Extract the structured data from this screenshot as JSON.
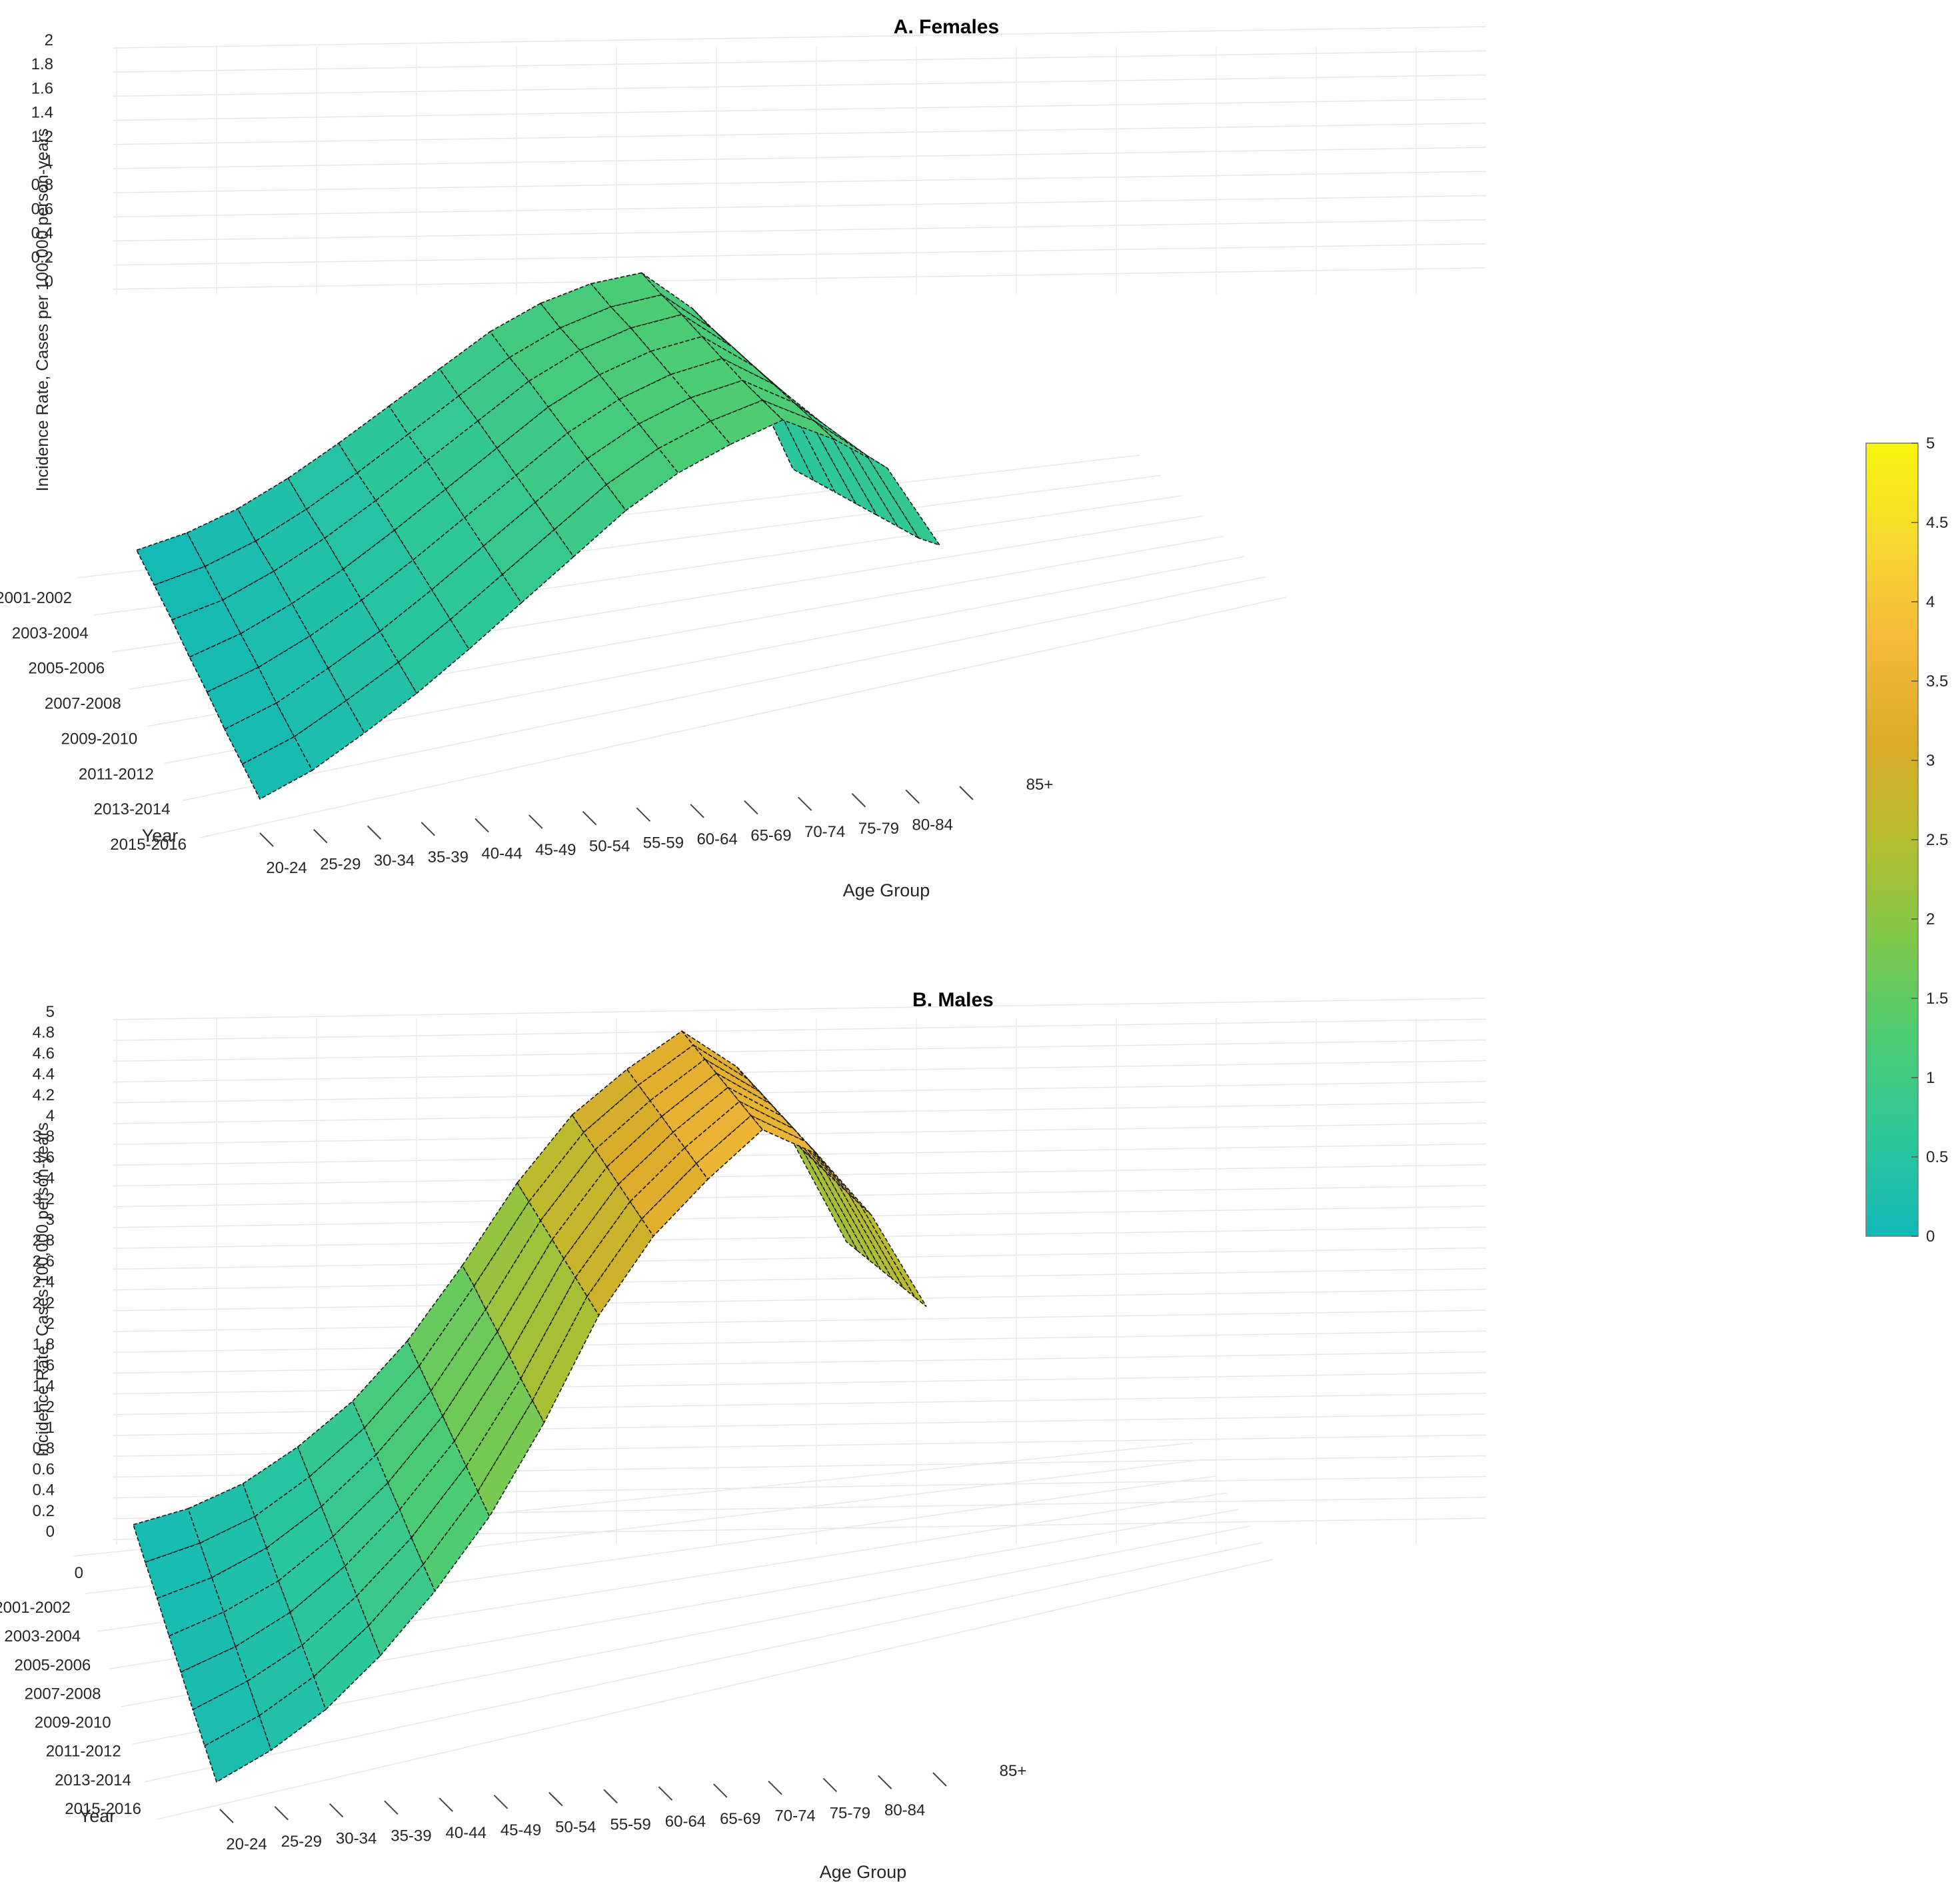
{
  "chart_data": [
    {
      "type": "surface",
      "title": "A. Females",
      "xlabel": "Age Group",
      "ylabel": "Year",
      "zlabel": "Incidence Rate, Cases per 100,000 person-years",
      "zlim": [
        0,
        2
      ],
      "zticks": [
        "0",
        "0.2",
        "0.4",
        "0.6",
        "0.8",
        "1",
        "1.2",
        "1.4",
        "1.6",
        "1.8",
        "2"
      ],
      "age_groups": [
        "20-24",
        "25-29",
        "30-34",
        "35-39",
        "40-44",
        "45-49",
        "50-54",
        "55-59",
        "60-64",
        "65-69",
        "70-74",
        "75-79",
        "80-84",
        "85+"
      ],
      "years": [
        "2001-2002",
        "2003-2004",
        "2005-2006",
        "2007-2008",
        "2009-2010",
        "2011-2012",
        "2013-2014",
        "2015-2016"
      ],
      "z": [
        [
          0.05,
          0.12,
          0.22,
          0.35,
          0.5,
          0.66,
          0.82,
          0.98,
          1.1,
          1.18,
          1.22,
          1.05,
          0.8,
          0.3
        ],
        [
          0.06,
          0.13,
          0.23,
          0.36,
          0.51,
          0.67,
          0.83,
          0.99,
          1.11,
          1.19,
          1.23,
          1.06,
          0.82,
          0.34
        ],
        [
          0.07,
          0.14,
          0.25,
          0.38,
          0.53,
          0.69,
          0.85,
          1.01,
          1.13,
          1.21,
          1.25,
          1.08,
          0.85,
          0.38
        ],
        [
          0.07,
          0.15,
          0.26,
          0.39,
          0.54,
          0.7,
          0.86,
          1.02,
          1.14,
          1.22,
          1.26,
          1.1,
          0.87,
          0.42
        ],
        [
          0.08,
          0.16,
          0.27,
          0.4,
          0.55,
          0.71,
          0.87,
          1.03,
          1.15,
          1.23,
          1.27,
          1.12,
          0.9,
          0.46
        ],
        [
          0.08,
          0.16,
          0.28,
          0.41,
          0.56,
          0.72,
          0.88,
          1.04,
          1.16,
          1.24,
          1.28,
          1.14,
          0.93,
          0.5
        ],
        [
          0.09,
          0.17,
          0.29,
          0.42,
          0.57,
          0.73,
          0.89,
          1.05,
          1.17,
          1.25,
          1.3,
          1.16,
          0.96,
          0.54
        ],
        [
          0.1,
          0.18,
          0.3,
          0.43,
          0.58,
          0.74,
          0.9,
          1.06,
          1.18,
          1.26,
          1.32,
          1.18,
          1.0,
          0.6
        ]
      ]
    },
    {
      "type": "surface",
      "title": "B. Males",
      "xlabel": "Age Group",
      "ylabel": "Year",
      "zlabel": "Incidence Rate, Cases 100,000 person-years",
      "zlim": [
        0,
        5
      ],
      "zticks": [
        "0",
        "0.2",
        "0.4",
        "0.6",
        "0.8",
        "1",
        "1.2",
        "1.4",
        "1.6",
        "1.8",
        "2",
        "2.2",
        "2.4",
        "2.6",
        "2.8",
        "3",
        "3.2",
        "3.4",
        "3.6",
        "3.8",
        "4",
        "4.2",
        "4.4",
        "4.6",
        "4.8",
        "5"
      ],
      "extra_tick": "0",
      "age_groups": [
        "20-24",
        "25-29",
        "30-34",
        "35-39",
        "40-44",
        "45-49",
        "50-54",
        "55-59",
        "60-64",
        "65-69",
        "70-74",
        "75-79",
        "80-84",
        "85+"
      ],
      "years": [
        "2001-2002",
        "2003-2004",
        "2005-2006",
        "2007-2008",
        "2009-2010",
        "2011-2012",
        "2013-2014",
        "2015-2016"
      ],
      "z": [
        [
          0.1,
          0.2,
          0.36,
          0.6,
          0.9,
          1.3,
          1.8,
          2.35,
          2.8,
          3.1,
          3.35,
          3.1,
          2.6,
          1.9
        ],
        [
          0.1,
          0.21,
          0.37,
          0.62,
          0.93,
          1.33,
          1.85,
          2.4,
          2.85,
          3.15,
          3.4,
          3.15,
          2.65,
          1.95
        ],
        [
          0.11,
          0.22,
          0.39,
          0.64,
          0.96,
          1.36,
          1.88,
          2.45,
          2.9,
          3.2,
          3.45,
          3.2,
          2.7,
          2.0
        ],
        [
          0.11,
          0.23,
          0.4,
          0.66,
          0.98,
          1.39,
          1.92,
          2.5,
          2.95,
          3.25,
          3.5,
          3.25,
          2.75,
          2.05
        ],
        [
          0.12,
          0.24,
          0.42,
          0.68,
          1.01,
          1.42,
          1.95,
          2.55,
          3.0,
          3.3,
          3.55,
          3.3,
          2.8,
          2.1
        ],
        [
          0.12,
          0.25,
          0.43,
          0.7,
          1.03,
          1.45,
          1.98,
          2.6,
          3.05,
          3.35,
          3.6,
          3.35,
          2.85,
          2.15
        ],
        [
          0.13,
          0.26,
          0.45,
          0.72,
          1.06,
          1.48,
          2.02,
          2.65,
          3.1,
          3.4,
          3.65,
          3.4,
          2.9,
          2.2
        ],
        [
          0.14,
          0.27,
          0.46,
          0.74,
          1.09,
          1.51,
          2.06,
          2.7,
          3.15,
          3.45,
          3.7,
          3.45,
          2.95,
          2.25
        ]
      ]
    }
  ],
  "colorbar": {
    "ticks": [
      "0",
      "0.5",
      "1",
      "1.5",
      "2",
      "2.5",
      "3",
      "3.5",
      "4",
      "4.5",
      "5"
    ],
    "range": [
      0,
      5
    ],
    "colors": [
      "#12b8b8",
      "#2dc79a",
      "#4ccc73",
      "#80c84a",
      "#b6bd2e",
      "#dcab2a",
      "#f5b93a",
      "#f6d830",
      "#f9f50d"
    ]
  }
}
